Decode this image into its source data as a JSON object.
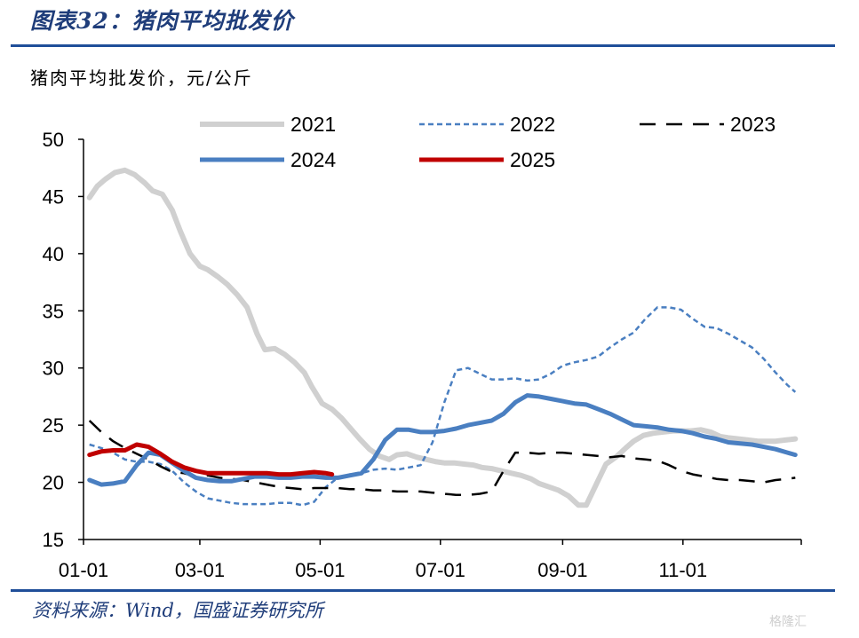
{
  "header": {
    "title": "图表32：猪肉平均批发价"
  },
  "footer": {
    "source": "资料来源：Wind，国盛证券研究所",
    "watermark": "格隆汇"
  },
  "chart_data": {
    "type": "line",
    "ylabel": "猪肉平均批发价，元/公斤",
    "ylim": [
      15,
      50
    ],
    "yticks": [
      15,
      20,
      25,
      30,
      35,
      40,
      45,
      50
    ],
    "x_tick_labels": [
      "01-01",
      "03-01",
      "05-01",
      "07-01",
      "09-01",
      "11-01"
    ],
    "x_tick_days": [
      1,
      60,
      121,
      182,
      244,
      305
    ],
    "xlim": [
      1,
      365
    ],
    "legend_position": "top",
    "series": [
      {
        "name": "2021",
        "color": "#d0d0d0",
        "style": "solid",
        "width": 6,
        "x": [
          4,
          8,
          12,
          17,
          22,
          27,
          32,
          36,
          41,
          46,
          50,
          55,
          60,
          64,
          69,
          74,
          79,
          84,
          89,
          93,
          98,
          103,
          108,
          113,
          117,
          122,
          127,
          132,
          137,
          141,
          146,
          151,
          156,
          160,
          165,
          170,
          175,
          180,
          184,
          189,
          194,
          199,
          203,
          208,
          213,
          218,
          223,
          228,
          232,
          237,
          242,
          247,
          252,
          256,
          261,
          266,
          271,
          276,
          280,
          285,
          290,
          295,
          300,
          305,
          309,
          314,
          319,
          324,
          328,
          333,
          338,
          343,
          348,
          352,
          357,
          362
        ],
        "y": [
          44.9,
          45.9,
          46.5,
          47.1,
          47.3,
          46.9,
          46.2,
          45.5,
          45.2,
          43.8,
          42.0,
          40.0,
          38.9,
          38.6,
          38.0,
          37.3,
          36.4,
          35.3,
          33.0,
          31.6,
          31.7,
          31.2,
          30.5,
          29.6,
          28.3,
          26.9,
          26.4,
          25.6,
          24.6,
          23.8,
          22.9,
          22.3,
          22.0,
          22.4,
          22.5,
          22.2,
          22.0,
          21.8,
          21.7,
          21.7,
          21.6,
          21.5,
          21.3,
          21.2,
          21.0,
          20.8,
          20.6,
          20.3,
          19.9,
          19.6,
          19.3,
          18.8,
          18.0,
          18.0,
          19.8,
          21.6,
          22.2,
          23.0,
          23.6,
          24.1,
          24.3,
          24.4,
          24.5,
          24.5,
          24.5,
          24.6,
          24.4,
          24.0,
          23.9,
          23.8,
          23.7,
          23.6,
          23.6,
          23.6,
          23.7,
          23.8
        ]
      },
      {
        "name": "2022",
        "color": "#4a7fc1",
        "style": "short-dash",
        "width": 2.5,
        "x": [
          4,
          10,
          16,
          22,
          28,
          34,
          40,
          46,
          52,
          58,
          64,
          70,
          76,
          82,
          88,
          94,
          100,
          106,
          112,
          118,
          124,
          130,
          136,
          142,
          148,
          154,
          160,
          166,
          172,
          178,
          184,
          190,
          196,
          202,
          208,
          214,
          220,
          226,
          232,
          238,
          244,
          250,
          256,
          262,
          268,
          274,
          280,
          286,
          292,
          298,
          304,
          310,
          316,
          322,
          328,
          334,
          340,
          346,
          352,
          358,
          362
        ],
        "y": [
          23.3,
          23.0,
          22.6,
          22.0,
          21.8,
          21.8,
          21.6,
          21.0,
          20.0,
          19.2,
          18.6,
          18.4,
          18.2,
          18.1,
          18.1,
          18.1,
          18.2,
          18.2,
          18.0,
          18.3,
          19.6,
          20.4,
          20.7,
          20.8,
          21.1,
          21.2,
          21.1,
          21.3,
          21.5,
          23.5,
          27.0,
          29.8,
          30.0,
          29.5,
          29.0,
          29.0,
          29.1,
          28.9,
          29.0,
          29.5,
          30.2,
          30.5,
          30.7,
          31.0,
          31.8,
          32.5,
          33.1,
          34.3,
          35.3,
          35.3,
          35.1,
          34.3,
          33.6,
          33.5,
          33.0,
          32.4,
          31.8,
          30.8,
          29.6,
          28.5,
          27.9
        ]
      },
      {
        "name": "2023",
        "color": "#000000",
        "style": "long-dash",
        "width": 2.5,
        "x": [
          4,
          10,
          16,
          22,
          28,
          34,
          40,
          46,
          52,
          58,
          64,
          70,
          76,
          82,
          88,
          94,
          100,
          106,
          112,
          118,
          124,
          130,
          136,
          142,
          148,
          154,
          160,
          166,
          172,
          178,
          184,
          190,
          196,
          202,
          208,
          214,
          220,
          226,
          232,
          238,
          244,
          250,
          256,
          262,
          268,
          274,
          280,
          286,
          292,
          298,
          304,
          310,
          316,
          322,
          328,
          334,
          340,
          346,
          352,
          358,
          362
        ],
        "y": [
          25.4,
          24.4,
          23.6,
          23.0,
          22.5,
          22.0,
          21.4,
          20.9,
          20.8,
          20.5,
          20.6,
          20.4,
          20.3,
          20.2,
          20.0,
          19.8,
          19.6,
          19.5,
          19.4,
          19.5,
          19.5,
          19.5,
          19.4,
          19.4,
          19.3,
          19.3,
          19.2,
          19.2,
          19.2,
          19.1,
          19.0,
          18.9,
          18.9,
          19.0,
          19.2,
          21.0,
          22.6,
          22.6,
          22.5,
          22.6,
          22.6,
          22.5,
          22.4,
          22.3,
          22.2,
          22.3,
          22.1,
          22.0,
          21.9,
          21.5,
          21.0,
          20.7,
          20.5,
          20.3,
          20.2,
          20.2,
          20.1,
          20.0,
          20.2,
          20.3,
          20.4
        ]
      },
      {
        "name": "2024",
        "color": "#4a7fc1",
        "style": "solid",
        "width": 5,
        "x": [
          4,
          10,
          16,
          22,
          28,
          34,
          40,
          46,
          52,
          58,
          64,
          70,
          76,
          82,
          88,
          94,
          100,
          106,
          112,
          118,
          124,
          130,
          136,
          142,
          148,
          154,
          160,
          166,
          172,
          178,
          184,
          190,
          196,
          202,
          208,
          214,
          220,
          226,
          232,
          238,
          244,
          250,
          256,
          262,
          268,
          274,
          280,
          286,
          292,
          298,
          304,
          310,
          316,
          322,
          328,
          334,
          340,
          346,
          352,
          358,
          362
        ],
        "y": [
          20.2,
          19.8,
          19.9,
          20.1,
          21.5,
          22.6,
          22.4,
          21.7,
          21.0,
          20.4,
          20.2,
          20.1,
          20.1,
          20.3,
          20.5,
          20.5,
          20.4,
          20.4,
          20.5,
          20.5,
          20.4,
          20.4,
          20.6,
          20.8,
          22.0,
          23.7,
          24.6,
          24.6,
          24.4,
          24.4,
          24.5,
          24.7,
          25.0,
          25.2,
          25.4,
          26.0,
          27.0,
          27.6,
          27.5,
          27.3,
          27.1,
          26.9,
          26.8,
          26.4,
          26.0,
          25.5,
          25.0,
          24.9,
          24.8,
          24.6,
          24.5,
          24.3,
          24.0,
          23.8,
          23.5,
          23.4,
          23.3,
          23.1,
          22.9,
          22.6,
          22.4
        ]
      },
      {
        "name": "2025",
        "color": "#c00000",
        "style": "solid",
        "width": 5,
        "x": [
          4,
          10,
          16,
          22,
          28,
          34,
          40,
          46,
          52,
          58,
          64,
          70,
          76,
          82,
          88,
          94,
          100,
          106,
          112,
          118,
          124,
          127
        ],
        "y": [
          22.4,
          22.7,
          22.8,
          22.8,
          23.3,
          23.1,
          22.5,
          21.8,
          21.3,
          21.0,
          20.8,
          20.8,
          20.8,
          20.8,
          20.8,
          20.8,
          20.7,
          20.7,
          20.8,
          20.9,
          20.8,
          20.7
        ]
      }
    ]
  }
}
